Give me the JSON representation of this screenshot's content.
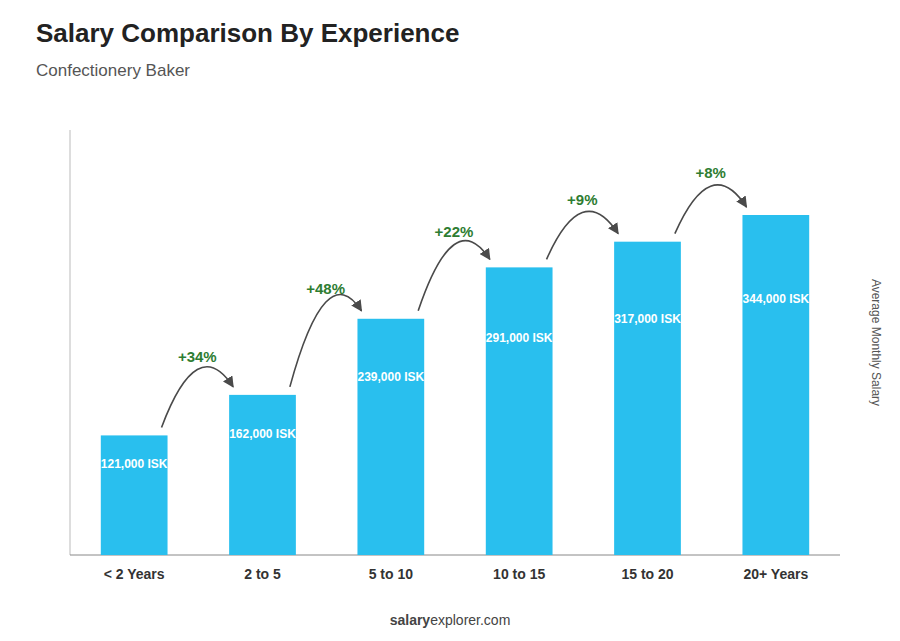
{
  "chart_data": {
    "type": "bar",
    "title": "Salary Comparison By Experience",
    "subtitle": "Confectionery Baker",
    "categories": [
      "< 2 Years",
      "2 to 5",
      "5 to 10",
      "10 to 15",
      "15 to 20",
      "20+ Years"
    ],
    "values": [
      121000,
      162000,
      239000,
      291000,
      317000,
      344000
    ],
    "value_labels": [
      "121,000 ISK",
      "162,000 ISK",
      "239,000 ISK",
      "291,000 ISK",
      "317,000 ISK",
      "344,000 ISK"
    ],
    "data_labels": true,
    "annotations": [
      "+34%",
      "+48%",
      "+22%",
      "+9%",
      "+8%"
    ],
    "y_label": "Average Monthly Salary",
    "footer": [
      "salary",
      "explorer.com"
    ],
    "color": "#29bfee",
    "ylim": [
      0,
      430000
    ],
    "tick_labels": "x",
    "grid": false
  }
}
